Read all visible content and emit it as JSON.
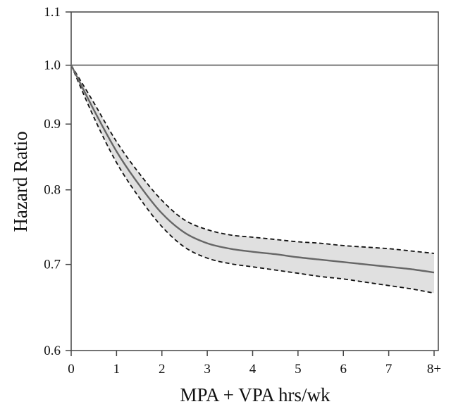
{
  "chart_data": {
    "type": "line",
    "title": "",
    "xlabel": "MPA + VPA hrs/wk",
    "ylabel": "Hazard Ratio",
    "scale_y": "log",
    "xlim": [
      0,
      8
    ],
    "ylim": [
      0.6,
      1.1
    ],
    "x_ticks": [
      0,
      1,
      2,
      3,
      4,
      5,
      6,
      7,
      8
    ],
    "x_tick_labels": [
      "0",
      "1",
      "2",
      "3",
      "4",
      "5",
      "6",
      "7",
      "8+"
    ],
    "y_ticks": [
      0.6,
      0.7,
      0.8,
      0.9,
      1.0,
      1.1
    ],
    "y_tick_labels": [
      "0.6",
      "0.7",
      "0.8",
      "0.9",
      "1.0",
      "1.1"
    ],
    "reference_line": {
      "y": 1.0,
      "label": ""
    },
    "grid": false,
    "legend": "none",
    "x": [
      0,
      0.5,
      1,
      1.5,
      2,
      2.5,
      3,
      3.5,
      4,
      4.5,
      5,
      5.5,
      6,
      6.5,
      7,
      7.5,
      8
    ],
    "series": [
      {
        "name": "estimate",
        "style": "solid",
        "values": [
          1.0,
          0.923,
          0.857,
          0.807,
          0.767,
          0.741,
          0.727,
          0.72,
          0.716,
          0.713,
          0.709,
          0.706,
          0.703,
          0.7,
          0.697,
          0.694,
          0.69
        ]
      },
      {
        "name": "upper 95% CI",
        "style": "dashed",
        "values": [
          1.0,
          0.935,
          0.872,
          0.824,
          0.785,
          0.758,
          0.745,
          0.738,
          0.735,
          0.732,
          0.729,
          0.727,
          0.724,
          0.722,
          0.72,
          0.717,
          0.714
        ]
      },
      {
        "name": "lower 95% CI",
        "style": "dashed",
        "values": [
          1.0,
          0.911,
          0.84,
          0.789,
          0.749,
          0.722,
          0.708,
          0.701,
          0.697,
          0.693,
          0.689,
          0.685,
          0.682,
          0.678,
          0.674,
          0.67,
          0.665
        ]
      }
    ],
    "colors": {
      "line": "#666666",
      "band": "#e0e0e0",
      "dashed": "#111111",
      "axis": "#444444"
    }
  }
}
